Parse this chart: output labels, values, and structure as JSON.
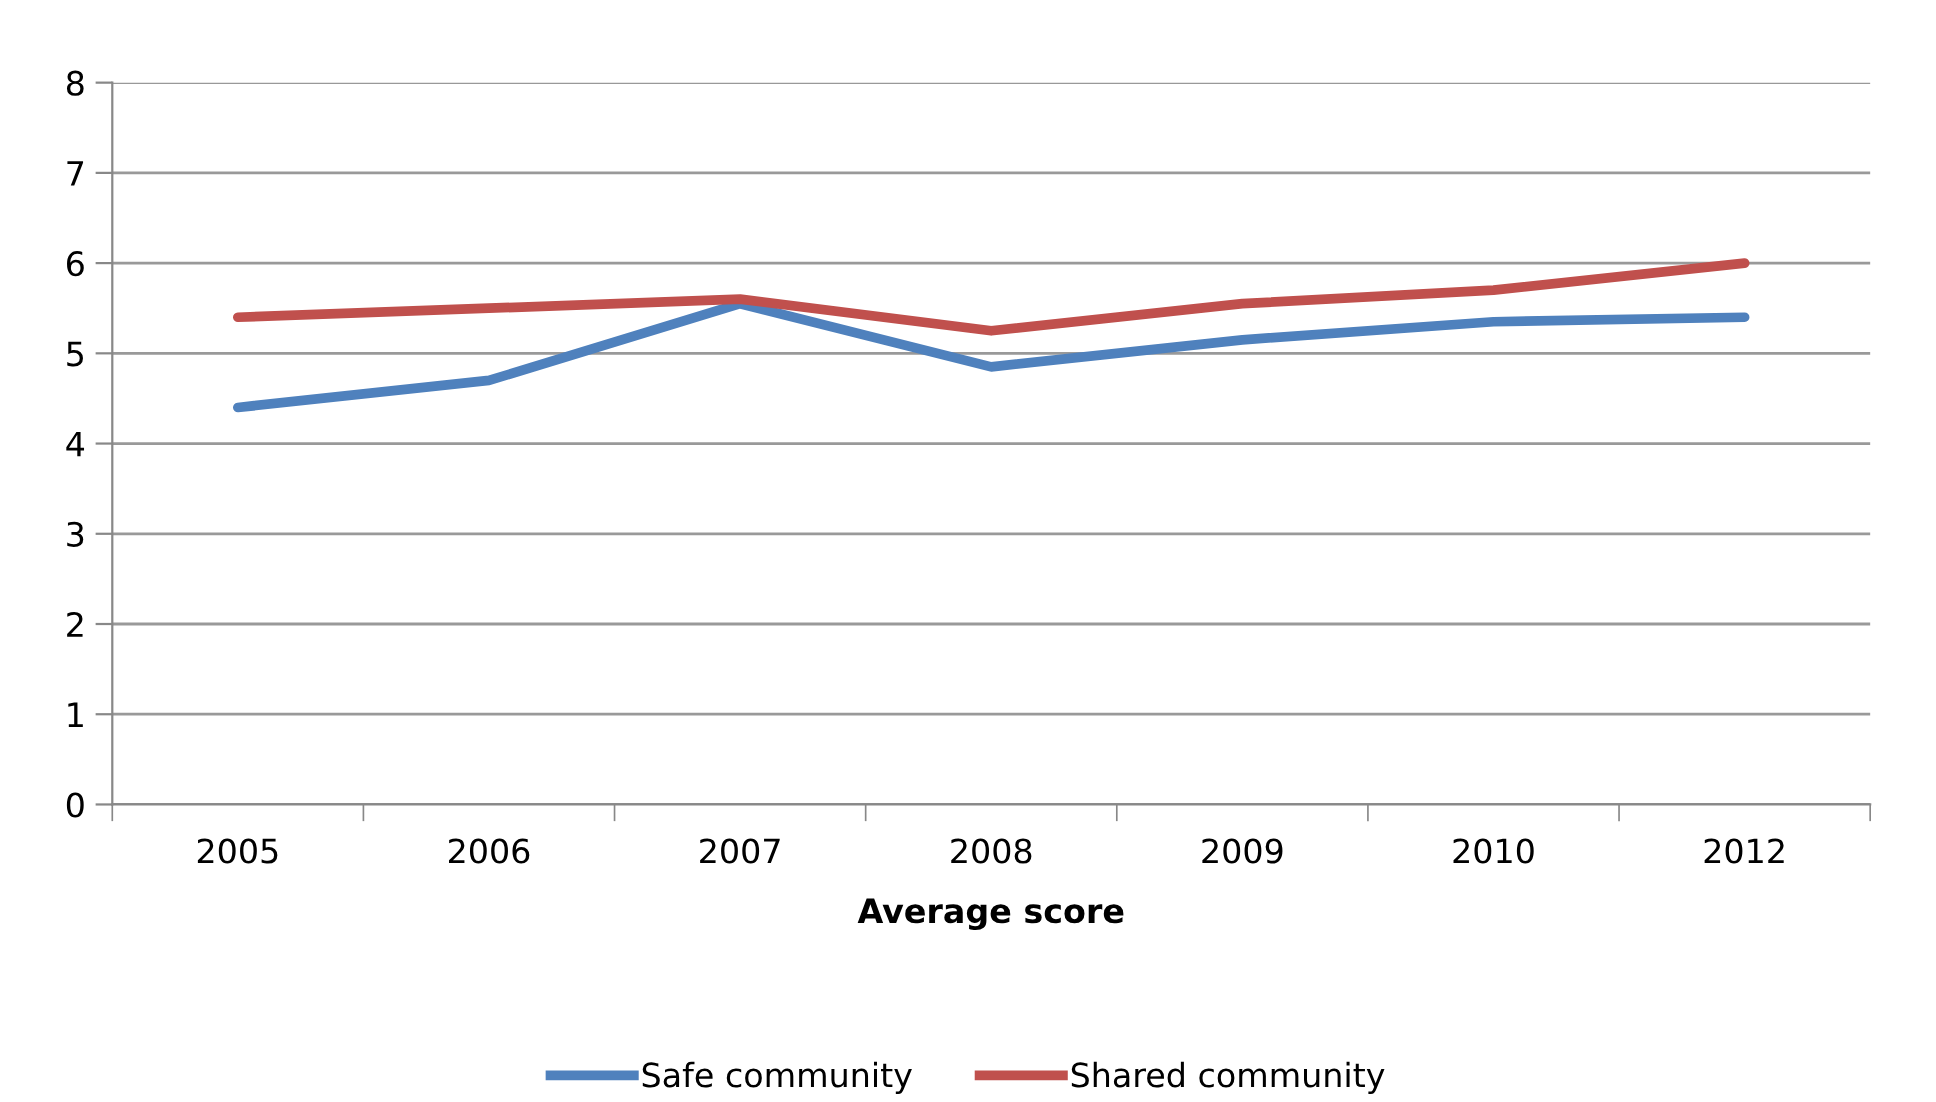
{
  "chart_data": {
    "type": "line",
    "xlabel": "Average score",
    "categories": [
      "2005",
      "2006",
      "2007",
      "2008",
      "2009",
      "2010",
      "2012"
    ],
    "series": [
      {
        "name": "Safe community",
        "color": "#4f81bd",
        "values": [
          4.4,
          4.7,
          5.55,
          4.85,
          5.15,
          5.35,
          5.4
        ]
      },
      {
        "name": "Shared community",
        "color": "#c0504d",
        "values": [
          5.4,
          5.5,
          5.6,
          5.25,
          5.55,
          5.7,
          6.0
        ]
      }
    ],
    "ylim": [
      0,
      8
    ],
    "yticks": [
      0,
      1,
      2,
      3,
      4,
      5,
      6,
      7,
      8
    ],
    "grid": "y",
    "legend": "bottom",
    "marker": "none",
    "line_style": "solid"
  }
}
